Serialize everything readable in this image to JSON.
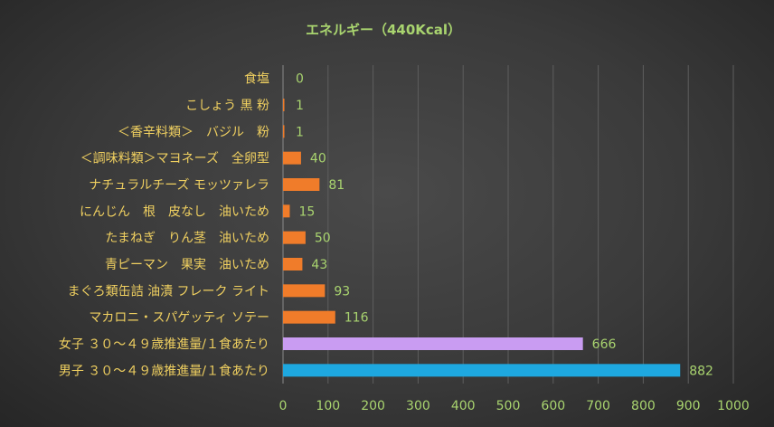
{
  "chart_data": {
    "type": "bar",
    "orientation": "horizontal",
    "title": "エネルギー（440Kcal）",
    "categories": [
      "食塩",
      "こしょう 黒 粉",
      "＜香辛料類＞　バジル　粉",
      "＜調味料類＞マヨネーズ　全卵型",
      "ナチュラルチーズ モッツァレラ",
      "にんじん　根　皮なし　油いため",
      "たまねぎ　りん茎　油いため",
      "青ピーマン　果実　油いため",
      "まぐろ類缶詰 油漬 フレーク ライト",
      "マカロニ・スパゲッティ ソテー",
      "女子 ３０～４９歳推進量/１食あたり",
      "男子 ３０～４９歳推進量/１食あたり"
    ],
    "values": [
      0,
      1,
      1,
      40,
      81,
      15,
      50,
      43,
      93,
      116,
      666,
      882
    ],
    "bar_colors": [
      "#f07c2a",
      "#f07c2a",
      "#f07c2a",
      "#f07c2a",
      "#f07c2a",
      "#f07c2a",
      "#f07c2a",
      "#f07c2a",
      "#f07c2a",
      "#f07c2a",
      "#c99cf2",
      "#1ea8e0"
    ],
    "xlim": [
      0,
      1000
    ],
    "xticks": [
      0,
      100,
      200,
      300,
      400,
      500,
      600,
      700,
      800,
      900,
      1000
    ],
    "grid": true,
    "legend": "none"
  }
}
